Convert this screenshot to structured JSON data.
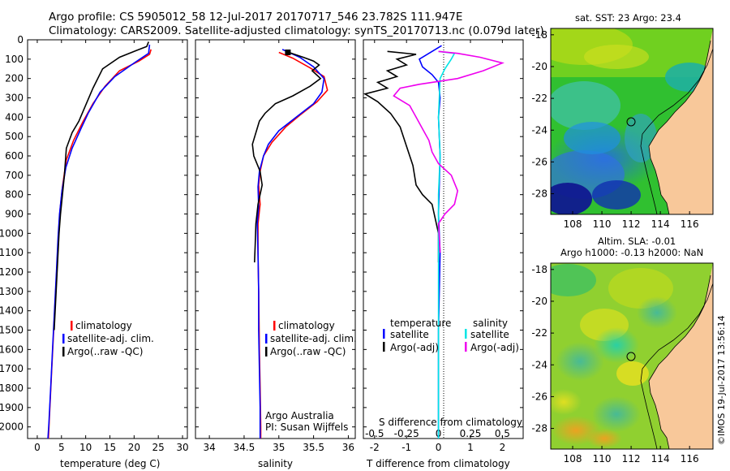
{
  "header": {
    "line1": "Argo profile: CS 5905012_58 12-Jul-2017 20170717_546 23.782S 111.947E",
    "line2": "Climatology: CARS2009. Satellite-adjusted climatology: synTS_20170713.nc (0.079d later)"
  },
  "colors": {
    "climatology": "#ff0000",
    "satellite": "#0000ff",
    "argo": "#000000",
    "salinity_sat": "#00e5e5",
    "salinity_argo": "#ee00ee"
  },
  "depth_ticks": [
    "0",
    "100",
    "200",
    "300",
    "400",
    "500",
    "600",
    "700",
    "800",
    "900",
    "1000",
    "1100",
    "1200",
    "1300",
    "1400",
    "1500",
    "1600",
    "1700",
    "1800",
    "1900",
    "2000"
  ],
  "chart_data": [
    {
      "type": "line",
      "id": "temperature",
      "xlabel": "temperature (deg C)",
      "xlim": [
        -2,
        31
      ],
      "ylim": [
        2060,
        0
      ],
      "xticks": [
        "0",
        "5",
        "10",
        "15",
        "20",
        "25",
        "30"
      ],
      "legend": [
        "climatology",
        "satellite-adj. clim.",
        "Argo(..raw -QC)"
      ],
      "series": [
        {
          "name": "climatology",
          "color": "#ff0000",
          "points": [
            [
              23.5,
              50
            ],
            [
              23.2,
              75
            ],
            [
              21,
              110
            ],
            [
              17,
              160
            ],
            [
              14,
              240
            ],
            [
              11.5,
              330
            ],
            [
              9.5,
              420
            ],
            [
              7.5,
              520
            ],
            [
              6,
              620
            ],
            [
              5.2,
              760
            ],
            [
              4.7,
              880
            ],
            [
              4.4,
              1000
            ],
            [
              4.1,
              1150
            ],
            [
              3.8,
              1300
            ],
            [
              3.4,
              1500
            ],
            [
              3.0,
              1700
            ],
            [
              2.6,
              1900
            ],
            [
              2.3,
              2060
            ]
          ]
        },
        {
          "name": "satellite-adj. clim.",
          "color": "#0000ff",
          "points": [
            [
              23.2,
              25
            ],
            [
              23.0,
              70
            ],
            [
              20,
              120
            ],
            [
              16,
              190
            ],
            [
              13,
              270
            ],
            [
              10.5,
              380
            ],
            [
              9,
              460
            ],
            [
              7.2,
              560
            ],
            [
              5.9,
              660
            ],
            [
              5.1,
              780
            ],
            [
              4.6,
              900
            ],
            [
              4.3,
              1020
            ],
            [
              4.0,
              1180
            ],
            [
              3.6,
              1380
            ],
            [
              3.2,
              1580
            ],
            [
              2.8,
              1780
            ],
            [
              2.4,
              1980
            ],
            [
              2.2,
              2060
            ]
          ]
        },
        {
          "name": "Argo(..raw -QC)",
          "color": "#000000",
          "points": [
            [
              23.0,
              10
            ],
            [
              22.6,
              35
            ],
            [
              20.5,
              55
            ],
            [
              17,
              90
            ],
            [
              13.5,
              150
            ],
            [
              11.5,
              250
            ],
            [
              9.8,
              350
            ],
            [
              8.6,
              420
            ],
            [
              7.2,
              480
            ],
            [
              6.0,
              560
            ],
            [
              5.6,
              700
            ],
            [
              5.2,
              800
            ],
            [
              4.8,
              900
            ],
            [
              4.5,
              1000
            ],
            [
              4.2,
              1150
            ],
            [
              3.9,
              1300
            ],
            [
              3.5,
              1500
            ]
          ]
        }
      ]
    },
    {
      "type": "line",
      "id": "salinity",
      "xlabel": "salinity",
      "xlim": [
        33.8,
        36.1
      ],
      "ylim": [
        2060,
        0
      ],
      "xticks": [
        "34",
        "34.5",
        "35",
        "35.5",
        "36"
      ],
      "legend": [
        "climatology",
        "satellite-adj. clim.",
        "Argo(..raw -QC)"
      ],
      "annotation": [
        "Argo Australia",
        "PI: Susan Wijffels"
      ],
      "series": [
        {
          "name": "climatology",
          "color": "#ff0000",
          "points": [
            [
              35.0,
              65
            ],
            [
              35.2,
              95
            ],
            [
              35.45,
              145
            ],
            [
              35.65,
              190
            ],
            [
              35.7,
              260
            ],
            [
              35.55,
              320
            ],
            [
              35.3,
              390
            ],
            [
              35.1,
              450
            ],
            [
              34.9,
              530
            ],
            [
              34.78,
              600
            ],
            [
              34.73,
              680
            ],
            [
              34.71,
              750
            ],
            [
              34.73,
              850
            ],
            [
              34.7,
              950
            ],
            [
              34.7,
              1100
            ],
            [
              34.71,
              1300
            ],
            [
              34.72,
              1600
            ],
            [
              34.73,
              1800
            ],
            [
              34.74,
              2000
            ],
            [
              34.74,
              2060
            ]
          ]
        },
        {
          "name": "satellite-adj. clim.",
          "color": "#0000ff",
          "points": [
            [
              35.05,
              50
            ],
            [
              35.3,
              90
            ],
            [
              35.5,
              140
            ],
            [
              35.65,
              200
            ],
            [
              35.62,
              270
            ],
            [
              35.5,
              330
            ],
            [
              35.25,
              400
            ],
            [
              35.0,
              470
            ],
            [
              34.85,
              540
            ],
            [
              34.78,
              600
            ],
            [
              34.72,
              680
            ],
            [
              34.7,
              760
            ],
            [
              34.71,
              860
            ],
            [
              34.69,
              950
            ],
            [
              34.7,
              1100
            ],
            [
              34.71,
              1300
            ],
            [
              34.71,
              1500
            ],
            [
              34.72,
              1700
            ],
            [
              34.73,
              1900
            ],
            [
              34.73,
              2060
            ]
          ]
        },
        {
          "name": "Argo(..raw -QC)",
          "color": "#000000",
          "points": [
            [
              35.1,
              60
            ],
            [
              35.35,
              90
            ],
            [
              35.5,
              110
            ],
            [
              35.58,
              130
            ],
            [
              35.48,
              160
            ],
            [
              35.6,
              200
            ],
            [
              35.45,
              240
            ],
            [
              35.2,
              290
            ],
            [
              34.95,
              330
            ],
            [
              34.8,
              380
            ],
            [
              34.72,
              420
            ],
            [
              34.67,
              480
            ],
            [
              34.62,
              540
            ],
            [
              34.64,
              600
            ],
            [
              34.73,
              680
            ],
            [
              34.76,
              750
            ],
            [
              34.7,
              850
            ],
            [
              34.67,
              950
            ],
            [
              34.66,
              1050
            ],
            [
              34.65,
              1150
            ]
          ]
        }
      ]
    },
    {
      "type": "line",
      "id": "difference",
      "xlabel": "T difference from climatology",
      "xlabel_top": "S difference from climatology",
      "xlim": [
        -2.35,
        2.65
      ],
      "ylim": [
        2060,
        0
      ],
      "xticks": [
        "-2",
        "-1",
        "0",
        "1",
        "2"
      ],
      "xticks_top": [
        "-0.5",
        "-0.25",
        "0",
        "0.25",
        "0.5"
      ],
      "legend": {
        "temperature": "temperature",
        "salinity": "salinity",
        "satellite": "satellite",
        "argo": "Argo(-adj)"
      },
      "series": [
        {
          "name": "temperature satellite",
          "color": "#0000ff",
          "points": [
            [
              0.1,
              30
            ],
            [
              -0.2,
              60
            ],
            [
              -0.6,
              100
            ],
            [
              -0.5,
              140
            ],
            [
              -0.2,
              180
            ],
            [
              0,
              220
            ],
            [
              0.05,
              300
            ],
            [
              0.0,
              400
            ],
            [
              0.05,
              600
            ],
            [
              0.0,
              900
            ],
            [
              0.05,
              1100
            ],
            [
              0.0,
              1500
            ],
            [
              0.0,
              2060
            ]
          ]
        },
        {
          "name": "temperature Argo(-adj)",
          "color": "#000000",
          "points": [
            [
              -1.6,
              60
            ],
            [
              -0.7,
              75
            ],
            [
              -1.3,
              100
            ],
            [
              -1.0,
              130
            ],
            [
              -1.6,
              160
            ],
            [
              -1.3,
              190
            ],
            [
              -1.9,
              220
            ],
            [
              -1.6,
              250
            ],
            [
              -2.3,
              280
            ],
            [
              -1.9,
              320
            ],
            [
              -1.5,
              380
            ],
            [
              -1.2,
              450
            ],
            [
              -1.0,
              550
            ],
            [
              -0.8,
              650
            ],
            [
              -0.7,
              750
            ],
            [
              -0.5,
              800
            ],
            [
              -0.2,
              850
            ],
            [
              0.0,
              1000
            ],
            [
              0.0,
              1150
            ]
          ]
        },
        {
          "name": "salinity satellite",
          "color": "#00e5e5",
          "points": [
            [
              0.0,
              60
            ],
            [
              0.5,
              70
            ],
            [
              0.4,
              100
            ],
            [
              0.2,
              150
            ],
            [
              0.05,
              200
            ],
            [
              0.0,
              400
            ],
            [
              0.05,
              600
            ],
            [
              0.0,
              800
            ],
            [
              0.0,
              1200
            ],
            [
              0.0,
              2060
            ]
          ]
        },
        {
          "name": "salinity Argo(-adj)",
          "color": "#ee00ee",
          "points": [
            [
              0.0,
              60
            ],
            [
              0.6,
              70
            ],
            [
              1.3,
              90
            ],
            [
              2.0,
              120
            ],
            [
              1.4,
              160
            ],
            [
              0.6,
              200
            ],
            [
              -0.6,
              230
            ],
            [
              -1.2,
              250
            ],
            [
              -1.4,
              290
            ],
            [
              -0.9,
              340
            ],
            [
              -0.7,
              400
            ],
            [
              -0.5,
              460
            ],
            [
              -0.3,
              520
            ],
            [
              -0.2,
              580
            ],
            [
              0.0,
              640
            ],
            [
              0.4,
              700
            ],
            [
              0.6,
              780
            ],
            [
              0.5,
              850
            ],
            [
              0.2,
              900
            ],
            [
              0.0,
              950
            ],
            [
              0.05,
              1100
            ]
          ]
        }
      ]
    }
  ],
  "maps": [
    {
      "id": "sst",
      "title1": "sat. SST: 23 Argo: 23.4",
      "title2": "",
      "xticks": [
        "108",
        "110",
        "112",
        "114",
        "116"
      ],
      "yticks": [
        "-18",
        "-20",
        "-22",
        "-24",
        "-26",
        "-28"
      ]
    },
    {
      "id": "sla",
      "title1": "Altim. SLA: -0.01",
      "title2": "Argo h1000: -0.13 h2000: NaN",
      "xticks": [
        "108",
        "110",
        "112",
        "114",
        "116"
      ],
      "yticks": [
        "-18",
        "-20",
        "-22",
        "-24",
        "-26",
        "-28"
      ]
    }
  ],
  "credit": "©IMOS 19-Jul-2017 13:56:14"
}
